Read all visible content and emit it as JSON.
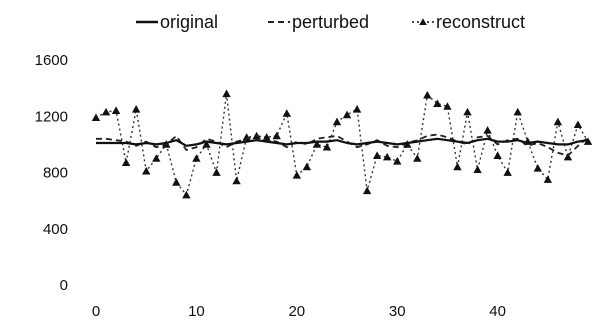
{
  "chart_data": {
    "type": "line",
    "title": "",
    "xlabel": "",
    "ylabel": "",
    "ylim": [
      0,
      1600
    ],
    "xlim": [
      0,
      49
    ],
    "yticks": [
      0,
      400,
      800,
      1200,
      1600
    ],
    "xticks": [
      0,
      10,
      20,
      30,
      40
    ],
    "grid": false,
    "legend_position": "top",
    "x": [
      0,
      1,
      2,
      3,
      4,
      5,
      6,
      7,
      8,
      9,
      10,
      11,
      12,
      13,
      14,
      15,
      16,
      17,
      18,
      19,
      20,
      21,
      22,
      23,
      24,
      25,
      26,
      27,
      28,
      29,
      30,
      31,
      32,
      33,
      34,
      35,
      36,
      37,
      38,
      39,
      40,
      41,
      42,
      43,
      44,
      45,
      46,
      47,
      48,
      49
    ],
    "series": [
      {
        "name": "original",
        "style": "solid",
        "values": [
          1010,
          1010,
          1010,
          1010,
          1000,
          1010,
          1000,
          1010,
          1030,
          990,
          1000,
          1020,
          1010,
          1000,
          1010,
          1020,
          1030,
          1020,
          1010,
          1000,
          1010,
          1010,
          1020,
          1020,
          1030,
          1010,
          1000,
          1010,
          1020,
          1010,
          1000,
          1010,
          1020,
          1030,
          1040,
          1030,
          1020,
          1010,
          1030,
          1040,
          1020,
          1020,
          1030,
          1010,
          1020,
          1010,
          1000,
          1000,
          1020,
          1030
        ]
      },
      {
        "name": "perturbed",
        "style": "dashed",
        "values": [
          1040,
          1040,
          1030,
          1020,
          990,
          1020,
          980,
          1000,
          1060,
          960,
          980,
          1040,
          1020,
          980,
          1020,
          1040,
          1060,
          1030,
          1020,
          980,
          1020,
          1000,
          1040,
          1050,
          1060,
          1020,
          980,
          1000,
          1030,
          990,
          980,
          1010,
          1030,
          1060,
          1070,
          1050,
          1020,
          1000,
          1050,
          1060,
          1000,
          1030,
          1040,
          990,
          1010,
          980,
          940,
          920,
          990,
          1050
        ]
      },
      {
        "name": "reconstruct",
        "style": "dotted-triangle",
        "values": [
          1190,
          1230,
          1240,
          870,
          1250,
          810,
          900,
          1000,
          730,
          640,
          900,
          1000,
          800,
          1360,
          740,
          1050,
          1060,
          1050,
          1060,
          1220,
          780,
          840,
          1000,
          980,
          1160,
          1210,
          1250,
          670,
          920,
          910,
          880,
          1000,
          900,
          1350,
          1290,
          1270,
          840,
          1230,
          820,
          1100,
          920,
          800,
          1230,
          1020,
          830,
          750,
          1160,
          910,
          1140,
          1020
        ]
      }
    ]
  }
}
